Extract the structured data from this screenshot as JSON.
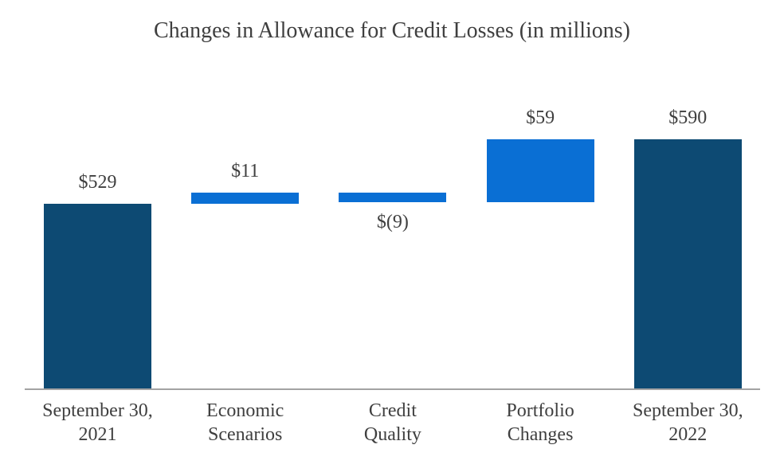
{
  "chart_data": {
    "type": "bar",
    "subtype": "waterfall",
    "title": "Changes in Allowance for Credit Losses (in millions)",
    "categories": [
      "September 30, 2021",
      "Economic Scenarios",
      "Credit Quality",
      "Portfolio Changes",
      "September 30, 2022"
    ],
    "bars": [
      {
        "label_lines": [
          "September 30,",
          "2021"
        ],
        "value": 529,
        "display": "$529",
        "role": "total"
      },
      {
        "label_lines": [
          "Economic",
          "Scenarios"
        ],
        "value": 11,
        "display": "$11",
        "role": "delta"
      },
      {
        "label_lines": [
          "Credit",
          "Quality"
        ],
        "value": -9,
        "display": "$(9)",
        "role": "delta"
      },
      {
        "label_lines": [
          "Portfolio",
          "Changes"
        ],
        "value": 59,
        "display": "$59",
        "role": "delta"
      },
      {
        "label_lines": [
          "September 30,",
          "2022"
        ],
        "value": 590,
        "display": "$590",
        "role": "total"
      }
    ],
    "xlabel": "",
    "ylabel": "",
    "ylim": [
      354,
      606
    ],
    "grid": false,
    "legend": false,
    "colors": {
      "total_bar": "#0D4A73",
      "delta_bar": "#0A6FD4",
      "text": "#3F3F3F",
      "axis_line": "#A3A3A3",
      "background": "#FFFFFF"
    }
  }
}
